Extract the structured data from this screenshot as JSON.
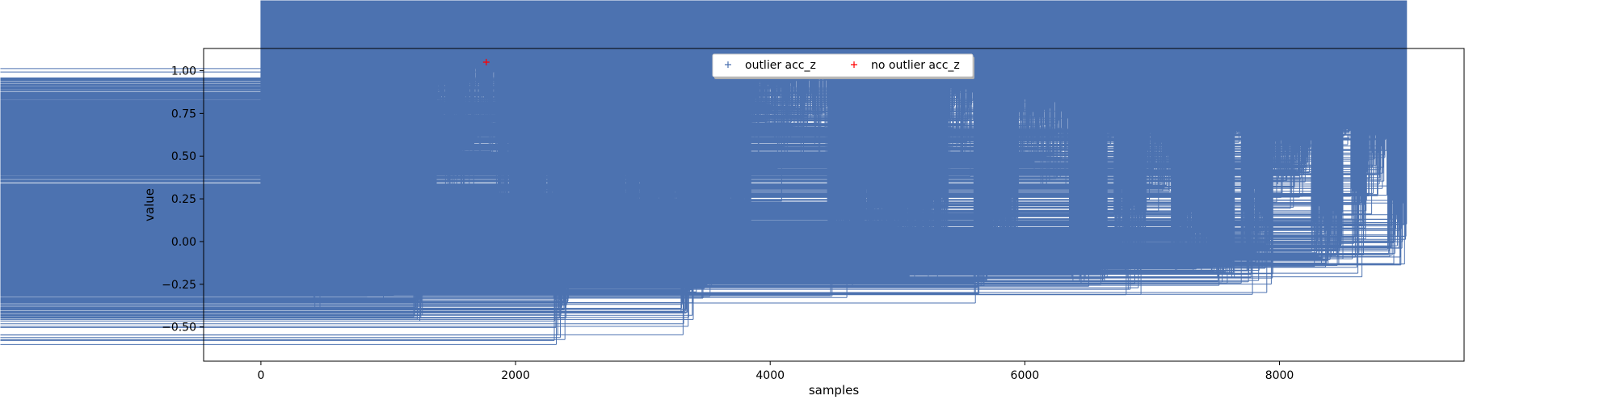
{
  "chart_data": {
    "type": "scatter",
    "xlabel": "samples",
    "ylabel": "value",
    "xlim": [
      -450,
      9450
    ],
    "ylim": [
      -0.7,
      1.13
    ],
    "xticks": [
      0,
      2000,
      4000,
      6000,
      8000
    ],
    "xtick_labels": [
      "0",
      "2000",
      "4000",
      "6000",
      "8000"
    ],
    "yticks": [
      -0.5,
      -0.25,
      0.0,
      0.25,
      0.5,
      0.75,
      1.0
    ],
    "ytick_labels": [
      "−0.50",
      "−0.25",
      "0.00",
      "0.25",
      "0.50",
      "0.75",
      "1.00"
    ],
    "grid": false,
    "legend_position": "top-center",
    "series": [
      {
        "name": "outlier acc_z",
        "marker": "+",
        "color": "#4c72b0",
        "n": 9000,
        "segments": [
          {
            "x": [
              0,
              180
            ],
            "center": -0.12,
            "spread": 0.08,
            "range": [
              -0.26,
              0.05
            ]
          },
          {
            "x": [
              180,
              400
            ],
            "center": -0.1,
            "spread": 0.09,
            "range": [
              -0.28,
              0.08
            ]
          },
          {
            "x": [
              400,
              500
            ],
            "center": -0.22,
            "spread": 0.12,
            "range": [
              -0.45,
              0.05
            ]
          },
          {
            "x": [
              500,
              750
            ],
            "center": -0.1,
            "spread": 0.1,
            "range": [
              -0.4,
              0.17
            ]
          },
          {
            "x": [
              750,
              1000
            ],
            "center": -0.15,
            "spread": 0.09,
            "range": [
              -0.38,
              0.12
            ]
          },
          {
            "x": [
              1000,
              1200
            ],
            "center": -0.18,
            "spread": 0.08,
            "range": [
              -0.4,
              0.1
            ]
          },
          {
            "x": [
              1200,
              1270
            ],
            "center": -0.38,
            "spread": 0.06,
            "range": [
              -0.48,
              -0.2
            ]
          },
          {
            "x": [
              1270,
              1380
            ],
            "center": -0.12,
            "spread": 0.07,
            "range": [
              -0.3,
              0.07
            ]
          },
          {
            "x": [
              1380,
              1450
            ],
            "center": 0.78,
            "spread": 0.15,
            "range": [
              0.3,
              1.02
            ]
          },
          {
            "x": [
              1450,
              1600
            ],
            "center": 0.45,
            "spread": 0.15,
            "range": [
              0.18,
              0.8
            ]
          },
          {
            "x": [
              1600,
              1850
            ],
            "center": 0.68,
            "spread": 0.18,
            "range": [
              0.22,
              1.03
            ]
          },
          {
            "x": [
              1850,
              1960
            ],
            "center": 0.35,
            "spread": 0.12,
            "range": [
              0.1,
              0.6
            ]
          },
          {
            "x": [
              1960,
              2100
            ],
            "center": 0.0,
            "spread": 0.1,
            "range": [
              -0.2,
              0.3
            ]
          },
          {
            "x": [
              2100,
              2200
            ],
            "center": -0.15,
            "spread": 0.05,
            "range": [
              -0.28,
              0.0
            ]
          },
          {
            "x": [
              2200,
              2300
            ],
            "center": 0.05,
            "spread": 0.18,
            "range": [
              -0.2,
              0.48
            ]
          },
          {
            "x": [
              2300,
              2420
            ],
            "center": -0.4,
            "spread": 0.1,
            "range": [
              -0.63,
              -0.25
            ]
          },
          {
            "x": [
              2420,
              2600
            ],
            "center": -0.12,
            "spread": 0.07,
            "range": [
              -0.28,
              0.02
            ]
          },
          {
            "x": [
              2600,
              2800
            ],
            "center": 0.05,
            "spread": 0.15,
            "range": [
              -0.3,
              0.48
            ]
          },
          {
            "x": [
              2800,
              3000
            ],
            "center": 0.1,
            "spread": 0.12,
            "range": [
              -0.32,
              0.6
            ]
          },
          {
            "x": [
              3000,
              3300
            ],
            "center": 0.08,
            "spread": 0.1,
            "range": [
              -0.2,
              0.3
            ]
          },
          {
            "x": [
              3300,
              3400
            ],
            "center": -0.38,
            "spread": 0.1,
            "range": [
              -0.63,
              -0.25
            ]
          },
          {
            "x": [
              3400,
              3600
            ],
            "center": -0.15,
            "spread": 0.08,
            "range": [
              -0.35,
              0.12
            ]
          },
          {
            "x": [
              3600,
              3850
            ],
            "center": 0.08,
            "spread": 0.12,
            "range": [
              -0.2,
              0.3
            ]
          },
          {
            "x": [
              3850,
              4450
            ],
            "center": 0.72,
            "spread": 0.12,
            "range": [
              0.2,
              0.98
            ]
          },
          {
            "x": [
              4450,
              4650
            ],
            "center": -0.1,
            "spread": 0.12,
            "range": [
              -0.4,
              0.4
            ]
          },
          {
            "x": [
              4650,
              5400
            ],
            "center": -0.02,
            "spread": 0.14,
            "range": [
              -0.25,
              0.58
            ]
          },
          {
            "x": [
              5400,
              5600
            ],
            "center": 0.72,
            "spread": 0.15,
            "range": [
              0.15,
              1.0
            ]
          },
          {
            "x": [
              5600,
              5750
            ],
            "center": -0.15,
            "spread": 0.08,
            "range": [
              -0.38,
              0.1
            ]
          },
          {
            "x": [
              5750,
              5950
            ],
            "center": 0.0,
            "spread": 0.12,
            "range": [
              -0.35,
              0.48
            ]
          },
          {
            "x": [
              5950,
              6350
            ],
            "center": 0.55,
            "spread": 0.12,
            "range": [
              0.25,
              0.9
            ]
          },
          {
            "x": [
              6350,
              6650
            ],
            "center": -0.15,
            "spread": 0.05,
            "range": [
              -0.3,
              -0.05
            ]
          },
          {
            "x": [
              6650,
              6700
            ],
            "center": 0.62,
            "spread": 0.03,
            "range": [
              0.55,
              0.66
            ]
          },
          {
            "x": [
              6700,
              6950
            ],
            "center": -0.05,
            "spread": 0.15,
            "range": [
              -0.35,
              0.45
            ]
          },
          {
            "x": [
              6950,
              7150
            ],
            "center": 0.42,
            "spread": 0.1,
            "range": [
              0.1,
              0.8
            ]
          },
          {
            "x": [
              7150,
              7450
            ],
            "center": -0.05,
            "spread": 0.1,
            "range": [
              -0.2,
              0.25
            ]
          },
          {
            "x": [
              7450,
              7650
            ],
            "center": -0.15,
            "spread": 0.05,
            "range": [
              -0.3,
              -0.05
            ]
          },
          {
            "x": [
              7650,
              7700
            ],
            "center": 0.62,
            "spread": 0.03,
            "range": [
              0.55,
              0.66
            ]
          },
          {
            "x": [
              7700,
              7950
            ],
            "center": -0.05,
            "spread": 0.15,
            "range": [
              -0.33,
              0.45
            ]
          },
          {
            "x": [
              7950,
              8250
            ],
            "center": 0.4,
            "spread": 0.1,
            "range": [
              0.15,
              0.8
            ]
          },
          {
            "x": [
              8250,
              8500
            ],
            "center": 0.0,
            "spread": 0.1,
            "range": [
              -0.15,
              0.25
            ]
          },
          {
            "x": [
              8500,
              8560
            ],
            "center": 0.62,
            "spread": 0.03,
            "range": [
              0.55,
              0.66
            ]
          },
          {
            "x": [
              8560,
              8680
            ],
            "center": 0.1,
            "spread": 0.18,
            "range": [
              -0.33,
              0.5
            ]
          },
          {
            "x": [
              8680,
              8850
            ],
            "center": 0.42,
            "spread": 0.12,
            "range": [
              0.05,
              0.8
            ]
          },
          {
            "x": [
              8850,
              9000
            ],
            "center": 0.0,
            "spread": 0.12,
            "range": [
              -0.15,
              0.25
            ]
          }
        ]
      },
      {
        "name": "no outlier acc_z",
        "marker": "+",
        "color": "#ff0000",
        "points": [
          {
            "x": 1770,
            "y": 1.05
          }
        ]
      }
    ]
  }
}
